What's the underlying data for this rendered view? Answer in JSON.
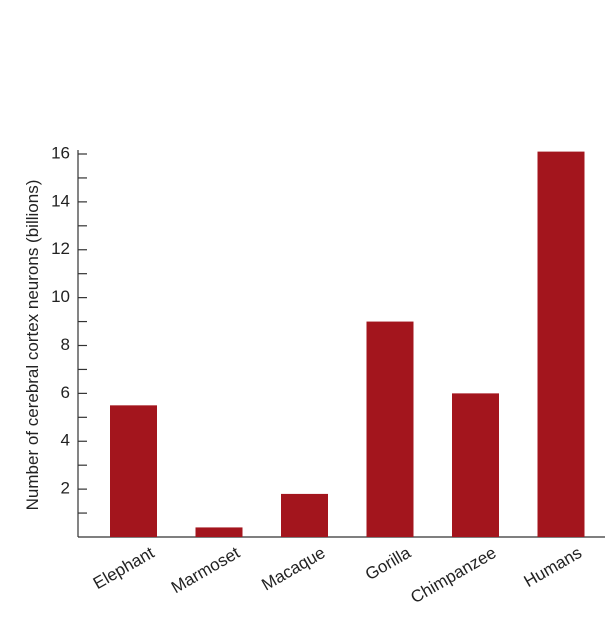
{
  "chart_data": {
    "type": "bar",
    "y_label": "Number of cerebral cortex neurons (billions)",
    "categories": [
      "Elephant",
      "Marmoset",
      "Macaque",
      "Gorilla",
      "Chimpanzee",
      "Humans"
    ],
    "values": [
      5.5,
      0.4,
      1.8,
      9.0,
      6.0,
      16.1
    ],
    "color": "#a3151d",
    "ylim": [
      0,
      16
    ],
    "yticks": [
      2,
      4,
      6,
      8,
      10,
      12,
      14,
      16
    ],
    "minor_yticks": [
      1,
      3,
      5,
      7,
      9,
      11,
      13,
      15
    ],
    "grid": false
  }
}
